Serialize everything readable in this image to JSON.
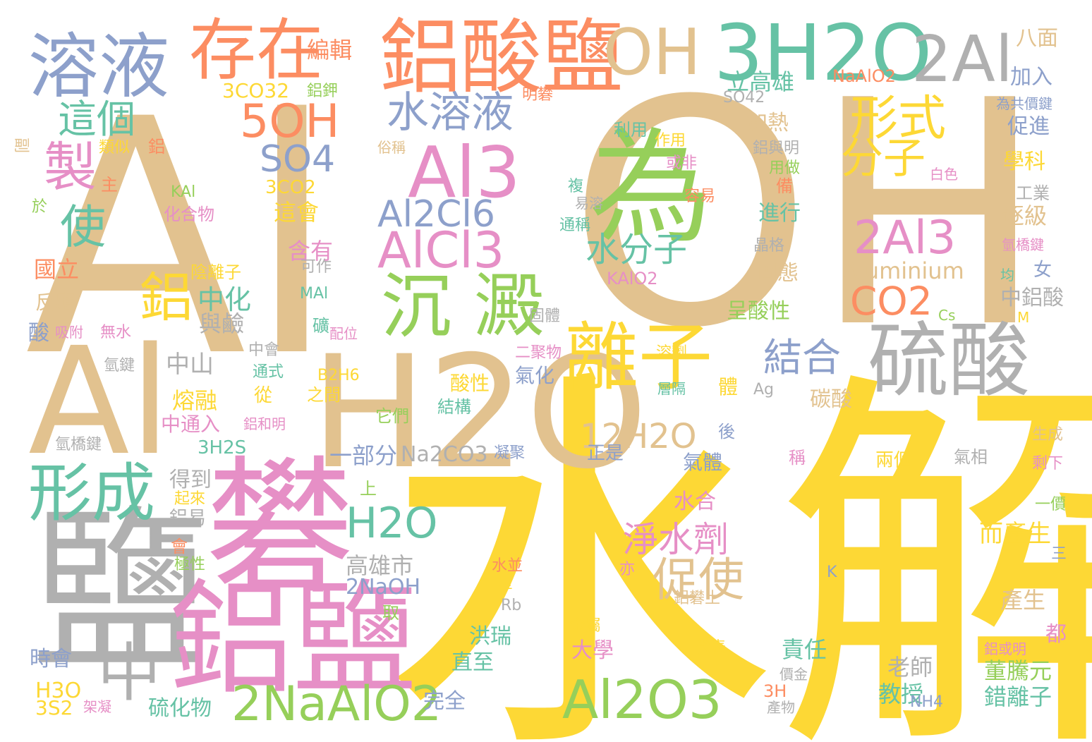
{
  "palette": {
    "tan": "#e2c28f",
    "yellow": "#fdd835",
    "gray": "#b0b0b0",
    "pink": "#e68fc6",
    "green": "#96cf5a",
    "teal": "#66c2a5",
    "blue": "#8da0cb",
    "orange": "#fc8d62"
  },
  "words": [
    {
      "text": "Al",
      "color": "tan"
    },
    {
      "text": "OH",
      "color": "tan"
    },
    {
      "text": "水解",
      "color": "yellow"
    },
    {
      "text": "Al",
      "color": "tan"
    },
    {
      "text": "H2O",
      "color": "tan"
    },
    {
      "text": "鹽",
      "color": "gray"
    },
    {
      "text": "礬",
      "color": "pink"
    },
    {
      "text": "鋁鹽",
      "color": "pink"
    },
    {
      "text": "為",
      "color": "green"
    },
    {
      "text": "鋁酸鹽",
      "color": "orange"
    },
    {
      "text": "3H2O",
      "color": "teal"
    },
    {
      "text": "OH",
      "color": "tan"
    },
    {
      "text": "2Al",
      "color": "gray"
    },
    {
      "text": "溶液",
      "color": "blue"
    },
    {
      "text": "存在",
      "color": "orange"
    },
    {
      "text": "硫酸",
      "color": "gray"
    },
    {
      "text": "離子",
      "color": "yellow"
    },
    {
      "text": "沉 澱",
      "color": "green"
    },
    {
      "text": "Al3",
      "color": "pink"
    },
    {
      "text": "Al2O3",
      "color": "green"
    },
    {
      "text": "形成",
      "color": "teal"
    },
    {
      "text": "中",
      "color": "gray"
    },
    {
      "text": "2NaAlO2",
      "color": "green"
    },
    {
      "text": "5OH",
      "color": "orange"
    },
    {
      "text": "SO4",
      "color": "blue"
    },
    {
      "text": "水溶液",
      "color": "blue"
    },
    {
      "text": "Al2Cl6",
      "color": "blue"
    },
    {
      "text": "AlCl3",
      "color": "pink"
    },
    {
      "text": "水分子",
      "color": "teal"
    },
    {
      "text": "形式",
      "color": "yellow"
    },
    {
      "text": "分子",
      "color": "yellow"
    },
    {
      "text": "2Al3",
      "color": "pink"
    },
    {
      "text": "CO2",
      "color": "orange"
    },
    {
      "text": "這個",
      "color": "teal"
    },
    {
      "text": "製",
      "color": "pink"
    },
    {
      "text": "使",
      "color": "teal"
    },
    {
      "text": "鋁",
      "color": "yellow"
    },
    {
      "text": "H2O",
      "color": "teal"
    },
    {
      "text": "淨水劑",
      "color": "pink"
    },
    {
      "text": "促使",
      "color": "tan"
    },
    {
      "text": "12H2O",
      "color": "tan"
    },
    {
      "text": "結合",
      "color": "blue"
    },
    {
      "text": "立高雄",
      "color": "teal"
    },
    {
      "text": "Aluminium",
      "color": "tan"
    },
    {
      "text": "中化",
      "color": "teal"
    },
    {
      "text": "高雄市",
      "color": "gray"
    },
    {
      "text": "2NaOH",
      "color": "blue"
    },
    {
      "text": "一部分",
      "color": "blue"
    },
    {
      "text": "Na2CO3",
      "color": "gray"
    },
    {
      "text": "編輯",
      "color": "orange"
    },
    {
      "text": "3CO32",
      "color": "yellow"
    },
    {
      "text": "3CO2",
      "color": "yellow"
    },
    {
      "text": "這會",
      "color": "yellow"
    },
    {
      "text": "含有",
      "color": "pink"
    },
    {
      "text": "與鹼",
      "color": "gray"
    },
    {
      "text": "中山",
      "color": "gray"
    },
    {
      "text": "熔融",
      "color": "yellow"
    },
    {
      "text": "中通入",
      "color": "pink"
    },
    {
      "text": "3H2S",
      "color": "teal"
    },
    {
      "text": "得到",
      "color": "gray"
    },
    {
      "text": "鋁易",
      "color": "gray"
    },
    {
      "text": "時會",
      "color": "blue"
    },
    {
      "text": "H3O",
      "color": "yellow"
    },
    {
      "text": "3S2",
      "color": "yellow"
    },
    {
      "text": "硫化物",
      "color": "teal"
    },
    {
      "text": "完全",
      "color": "blue"
    },
    {
      "text": "直至",
      "color": "teal"
    },
    {
      "text": "洪瑞",
      "color": "teal"
    },
    {
      "text": "大學",
      "color": "pink"
    },
    {
      "text": "水合",
      "color": "pink"
    },
    {
      "text": "責任",
      "color": "teal"
    },
    {
      "text": "教授",
      "color": "teal"
    },
    {
      "text": "老師",
      "color": "gray"
    },
    {
      "text": "董騰元",
      "color": "green"
    },
    {
      "text": "錯離子",
      "color": "teal"
    },
    {
      "text": "產生",
      "color": "tan"
    },
    {
      "text": "而產生",
      "color": "yellow"
    },
    {
      "text": "都",
      "color": "pink"
    },
    {
      "text": "八面",
      "color": "tan"
    },
    {
      "text": "NaAlO2",
      "color": "orange"
    },
    {
      "text": "加入",
      "color": "blue"
    },
    {
      "text": "促進",
      "color": "blue"
    },
    {
      "text": "學科",
      "color": "yellow"
    },
    {
      "text": "逐級",
      "color": "tan"
    },
    {
      "text": "女",
      "color": "blue"
    },
    {
      "text": "中鋁酸",
      "color": "gray"
    },
    {
      "text": "加熱",
      "color": "tan"
    },
    {
      "text": "進行",
      "color": "teal"
    },
    {
      "text": "固態",
      "color": "tan"
    },
    {
      "text": "呈酸性",
      "color": "green"
    },
    {
      "text": "碳酸",
      "color": "tan"
    },
    {
      "text": "氣化",
      "color": "blue"
    },
    {
      "text": "體",
      "color": "yellow"
    },
    {
      "text": "酸性",
      "color": "yellow"
    },
    {
      "text": "結構",
      "color": "teal"
    },
    {
      "text": "氣體",
      "color": "blue"
    },
    {
      "text": "正是",
      "color": "blue"
    },
    {
      "text": "國立",
      "color": "orange"
    },
    {
      "text": "反應",
      "color": "tan"
    },
    {
      "text": "酸",
      "color": "blue"
    },
    {
      "text": "吸附",
      "color": "pink"
    },
    {
      "text": "無水",
      "color": "pink"
    },
    {
      "text": "類似",
      "color": "yellow"
    },
    {
      "text": "副",
      "color": "tan"
    },
    {
      "text": "主",
      "color": "orange"
    },
    {
      "text": "於",
      "color": "green"
    },
    {
      "text": "KAl",
      "color": "green"
    },
    {
      "text": "化合物",
      "color": "pink"
    },
    {
      "text": "陰離子",
      "color": "yellow"
    },
    {
      "text": "可作",
      "color": "gray"
    },
    {
      "text": "MAl",
      "color": "teal"
    },
    {
      "text": "礦",
      "color": "teal"
    },
    {
      "text": "配位",
      "color": "pink"
    },
    {
      "text": "中會",
      "color": "gray"
    },
    {
      "text": "通式",
      "color": "teal"
    },
    {
      "text": "從",
      "color": "yellow"
    },
    {
      "text": "鋁和明",
      "color": "pink"
    },
    {
      "text": "之間",
      "color": "yellow"
    },
    {
      "text": "它們",
      "color": "green"
    },
    {
      "text": "B2H6",
      "color": "yellow"
    },
    {
      "text": "氫鍵",
      "color": "gray"
    },
    {
      "text": "氫橋鍵",
      "color": "gray"
    },
    {
      "text": "上",
      "color": "green"
    },
    {
      "text": "起來",
      "color": "yellow"
    },
    {
      "text": "會",
      "color": "orange"
    },
    {
      "text": "極性",
      "color": "green"
    },
    {
      "text": "水並",
      "color": "orange"
    },
    {
      "text": "亦",
      "color": "pink"
    },
    {
      "text": "呈",
      "color": "yellow"
    },
    {
      "text": "取",
      "color": "green"
    },
    {
      "text": "Rb",
      "color": "gray"
    },
    {
      "text": "金屬",
      "color": "yellow"
    },
    {
      "text": "代表",
      "color": "yellow"
    },
    {
      "text": "鋁礬土",
      "color": "tan"
    },
    {
      "text": "價金",
      "color": "gray"
    },
    {
      "text": "3H",
      "color": "orange"
    },
    {
      "text": "產物",
      "color": "gray"
    },
    {
      "text": "NH4",
      "color": "blue"
    },
    {
      "text": "鋁與明",
      "color": "gray"
    },
    {
      "text": "用做",
      "color": "green"
    },
    {
      "text": "備",
      "color": "orange"
    },
    {
      "text": "晶格",
      "color": "gray"
    },
    {
      "text": "SO42",
      "color": "gray"
    },
    {
      "text": "明礬",
      "color": "orange"
    },
    {
      "text": "俗稱",
      "color": "tan"
    },
    {
      "text": "作用",
      "color": "yellow"
    },
    {
      "text": "利用",
      "color": "teal"
    },
    {
      "text": "或非",
      "color": "pink"
    },
    {
      "text": "複",
      "color": "teal"
    },
    {
      "text": "易溶",
      "color": "gray"
    },
    {
      "text": "容易",
      "color": "orange"
    },
    {
      "text": "通稱",
      "color": "teal"
    },
    {
      "text": "KAlO2",
      "color": "pink"
    },
    {
      "text": "固體",
      "color": "gray"
    },
    {
      "text": "二聚物",
      "color": "pink"
    },
    {
      "text": "溶劑",
      "color": "yellow"
    },
    {
      "text": "層隔",
      "color": "teal"
    },
    {
      "text": "Ag",
      "color": "gray"
    },
    {
      "text": "後",
      "color": "blue"
    },
    {
      "text": "凝聚",
      "color": "blue"
    },
    {
      "text": "稱",
      "color": "pink"
    },
    {
      "text": "兩個",
      "color": "yellow"
    },
    {
      "text": "氣相",
      "color": "gray"
    },
    {
      "text": "生成",
      "color": "tan"
    },
    {
      "text": "剩下",
      "color": "pink"
    },
    {
      "text": "一價",
      "color": "green"
    },
    {
      "text": "三",
      "color": "blue"
    },
    {
      "text": "K",
      "color": "blue"
    },
    {
      "text": "鋁或明",
      "color": "pink"
    },
    {
      "text": "Cs",
      "color": "green"
    },
    {
      "text": "M",
      "color": "yellow"
    },
    {
      "text": "均",
      "color": "teal"
    },
    {
      "text": "氫橋鍵",
      "color": "pink"
    },
    {
      "text": "工業",
      "color": "gray"
    },
    {
      "text": "白色",
      "color": "pink"
    },
    {
      "text": "為共價鍵",
      "color": "blue"
    },
    {
      "text": "鋁鉀",
      "color": "green"
    },
    {
      "text": "鋁",
      "color": "orange"
    },
    {
      "text": "架凝",
      "color": "pink"
    }
  ]
}
